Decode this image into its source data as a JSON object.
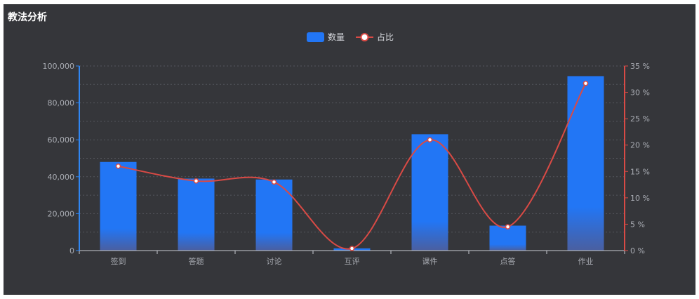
{
  "panel": {
    "title": "教法分析"
  },
  "chart_data": {
    "type": "bar",
    "categories": [
      "签到",
      "答题",
      "讨论",
      "互评",
      "课件",
      "点答",
      "作业"
    ],
    "series": [
      {
        "name": "数量",
        "type": "bar",
        "axis": "left",
        "color": "#2276f5",
        "values": [
          48000,
          39000,
          38500,
          1200,
          63000,
          13500,
          94500
        ]
      },
      {
        "name": "占比",
        "type": "line",
        "axis": "right",
        "color": "#d94a45",
        "smooth": true,
        "values": [
          16,
          13.2,
          13,
          0.4,
          21,
          4.5,
          31.7
        ]
      }
    ],
    "y_left": {
      "min": 0,
      "max": 100000,
      "ticks": [
        0,
        20000,
        40000,
        60000,
        80000,
        100000
      ],
      "tick_labels": [
        "0",
        "20,000",
        "40,000",
        "60,000",
        "80,000",
        "100,000"
      ],
      "color": "#2f86f2"
    },
    "y_right": {
      "min": 0,
      "max": 35,
      "ticks": [
        0,
        5,
        10,
        15,
        20,
        25,
        30,
        35
      ],
      "tick_labels": [
        "0 %",
        "5 %",
        "10 %",
        "15 %",
        "20 %",
        "25 %",
        "30 %",
        "35 %"
      ],
      "color": "#d94a45"
    },
    "grid": true,
    "legend_position": "top-center"
  }
}
